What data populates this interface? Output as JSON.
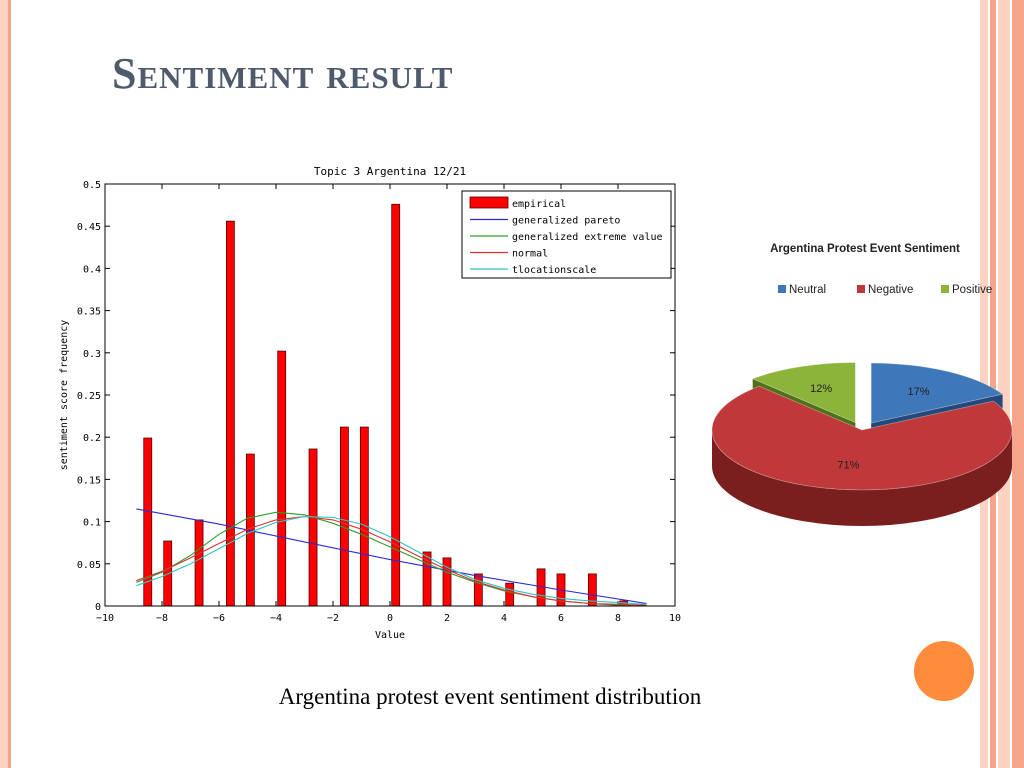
{
  "slide": {
    "title": "Sentiment result",
    "caption": "Argentina protest event sentiment distribution",
    "colors": {
      "title": "#4f5b6d",
      "stripe_dark": "#f4a58a",
      "stripe_light": "#fcd2c2",
      "circle": "#ff8c3c"
    }
  },
  "chart_data": [
    {
      "type": "bar",
      "title": "Topic 3 Argentina 12/21",
      "xlabel": "Value",
      "ylabel": "sentiment score frequency",
      "xlim": [
        -10,
        10
      ],
      "ylim": [
        0,
        0.5
      ],
      "x_ticks": [
        "−10",
        "−8",
        "−6",
        "−4",
        "−2",
        "0",
        "2",
        "4",
        "6",
        "8",
        "10"
      ],
      "y_ticks": [
        "0",
        "0.05",
        "0.1",
        "0.15",
        "0.2",
        "0.25",
        "0.3",
        "0.35",
        "0.4",
        "0.45",
        "0.5"
      ],
      "legend_position": "top-right",
      "series": [
        {
          "name": "empirical",
          "kind": "bar",
          "color": "#ff0000",
          "points": [
            {
              "x": -8.5,
              "y": 0.199
            },
            {
              "x": -7.8,
              "y": 0.077
            },
            {
              "x": -6.7,
              "y": 0.102
            },
            {
              "x": -5.6,
              "y": 0.456
            },
            {
              "x": -4.9,
              "y": 0.18
            },
            {
              "x": -3.8,
              "y": 0.302
            },
            {
              "x": -2.7,
              "y": 0.186
            },
            {
              "x": -1.6,
              "y": 0.212
            },
            {
              "x": -0.9,
              "y": 0.212
            },
            {
              "x": 0.2,
              "y": 0.476
            },
            {
              "x": 1.3,
              "y": 0.064
            },
            {
              "x": 2.0,
              "y": 0.057
            },
            {
              "x": 3.1,
              "y": 0.038
            },
            {
              "x": 4.2,
              "y": 0.027
            },
            {
              "x": 5.3,
              "y": 0.044
            },
            {
              "x": 6.0,
              "y": 0.038
            },
            {
              "x": 7.1,
              "y": 0.038
            },
            {
              "x": 8.2,
              "y": 0.006
            }
          ]
        },
        {
          "name": "generalized pareto",
          "kind": "line",
          "color": "#2b2bd8",
          "points": [
            [
              -8.9,
              0.115
            ],
            [
              -6,
              0.097
            ],
            [
              -3,
              0.076
            ],
            [
              0,
              0.055
            ],
            [
              3,
              0.036
            ],
            [
              6,
              0.019
            ],
            [
              9,
              0.003
            ]
          ]
        },
        {
          "name": "generalized extreme value",
          "kind": "line",
          "color": "#2ca02c",
          "points": [
            [
              -8.9,
              0.028
            ],
            [
              -8,
              0.04
            ],
            [
              -7,
              0.06
            ],
            [
              -6,
              0.085
            ],
            [
              -5,
              0.104
            ],
            [
              -4,
              0.111
            ],
            [
              -3,
              0.108
            ],
            [
              -2,
              0.098
            ],
            [
              -1,
              0.085
            ],
            [
              0,
              0.07
            ],
            [
              1,
              0.055
            ],
            [
              2,
              0.04
            ],
            [
              3,
              0.028
            ],
            [
              4,
              0.018
            ],
            [
              5,
              0.011
            ],
            [
              6,
              0.006
            ],
            [
              7,
              0.003
            ],
            [
              8,
              0.001
            ],
            [
              9,
              0.0
            ]
          ]
        },
        {
          "name": "normal",
          "kind": "line",
          "color": "#e03030",
          "points": [
            [
              -8.9,
              0.03
            ],
            [
              -8,
              0.041
            ],
            [
              -7,
              0.057
            ],
            [
              -6,
              0.074
            ],
            [
              -5,
              0.091
            ],
            [
              -4,
              0.102
            ],
            [
              -3,
              0.106
            ],
            [
              -2,
              0.102
            ],
            [
              -1,
              0.091
            ],
            [
              0,
              0.076
            ],
            [
              1,
              0.059
            ],
            [
              2,
              0.043
            ],
            [
              3,
              0.029
            ],
            [
              4,
              0.019
            ],
            [
              5,
              0.011
            ],
            [
              6,
              0.006
            ],
            [
              7,
              0.003
            ],
            [
              8,
              0.002
            ],
            [
              9,
              0.001
            ]
          ]
        },
        {
          "name": "tlocationscale",
          "kind": "line",
          "color": "#2ec4c4",
          "points": [
            [
              -8.9,
              0.024
            ],
            [
              -8,
              0.035
            ],
            [
              -7,
              0.05
            ],
            [
              -6,
              0.068
            ],
            [
              -5,
              0.086
            ],
            [
              -4,
              0.099
            ],
            [
              -3,
              0.106
            ],
            [
              -2,
              0.105
            ],
            [
              -1,
              0.097
            ],
            [
              0,
              0.082
            ],
            [
              1,
              0.064
            ],
            [
              2,
              0.046
            ],
            [
              3,
              0.031
            ],
            [
              4,
              0.021
            ],
            [
              5,
              0.014
            ],
            [
              6,
              0.009
            ],
            [
              7,
              0.006
            ],
            [
              8,
              0.004
            ],
            [
              9,
              0.002
            ]
          ]
        }
      ]
    },
    {
      "type": "pie",
      "title": "Argentina Protest Event Sentiment",
      "legend_position": "top",
      "slices": [
        {
          "label": "Neutral",
          "value": 17,
          "text": "17%",
          "color": "#3f78b8",
          "side": "#24487a"
        },
        {
          "label": "Negative",
          "value": 71,
          "text": "71%",
          "color": "#c0393a",
          "side": "#7a1e1e"
        },
        {
          "label": "Positive",
          "value": 12,
          "text": "12%",
          "color": "#8cb43a",
          "side": "#52701c"
        }
      ]
    }
  ]
}
